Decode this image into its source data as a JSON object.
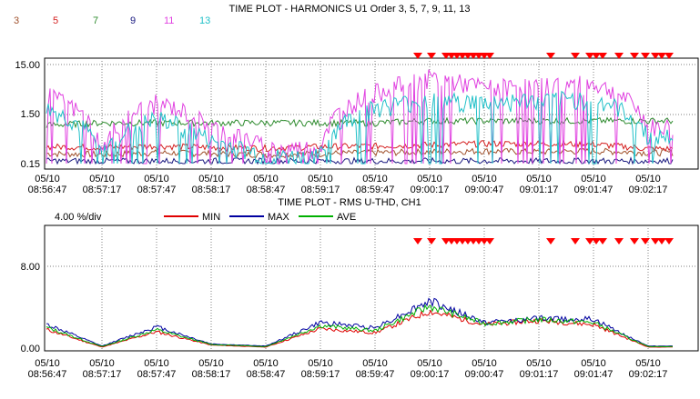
{
  "colors": {
    "h3": "#a0522d",
    "h5": "#d42020",
    "h7": "#2e8b2e",
    "h9": "#1a1a80",
    "h11": "#e040e0",
    "h13": "#20c0c8",
    "min": "#e00000",
    "max": "#0000a0",
    "ave": "#00b000",
    "marker": "#ff0000",
    "grid": "#808080",
    "axis": "#000000"
  },
  "chart_data": [
    {
      "type": "line",
      "title": "TIME PLOT - HARMONICS  U1  Order  3,  5,  7,  9, 11, 13",
      "log_scale": true,
      "ylim": [
        0.15,
        15.0
      ],
      "ytick_labels": [
        "15.00",
        "1.50",
        "0.15"
      ],
      "xtick_dates": [
        "05/10",
        "05/10",
        "05/10",
        "05/10",
        "05/10",
        "05/10",
        "05/10",
        "05/10",
        "05/10",
        "05/10",
        "05/10",
        "05/10"
      ],
      "xtick_times": [
        "08:56:47",
        "08:57:17",
        "08:57:47",
        "08:58:17",
        "08:58:47",
        "08:59:17",
        "08:59:47",
        "09:00:17",
        "09:00:47",
        "09:01:17",
        "09:01:47",
        "09:02:17"
      ],
      "legend_position": "top-left",
      "series": [
        {
          "name": "3",
          "color_key": "h3",
          "values": [
            0.24,
            0.23,
            0.25,
            0.24,
            0.23,
            0.24,
            0.25,
            0.26,
            0.27,
            0.26,
            0.27,
            0.25
          ]
        },
        {
          "name": "5",
          "color_key": "h5",
          "values": [
            0.33,
            0.32,
            0.34,
            0.32,
            0.31,
            0.33,
            0.34,
            0.36,
            0.38,
            0.38,
            0.37,
            0.3
          ]
        },
        {
          "name": "7",
          "color_key": "h7",
          "values": [
            0.9,
            1.0,
            1.0,
            1.0,
            1.0,
            1.0,
            1.0,
            1.1,
            1.1,
            1.1,
            1.1,
            1.1
          ]
        },
        {
          "name": "9",
          "color_key": "h9",
          "values": [
            0.17,
            0.17,
            0.17,
            0.17,
            0.17,
            0.17,
            0.17,
            0.17,
            0.17,
            0.17,
            0.17,
            0.17
          ]
        },
        {
          "name": "11",
          "color_key": "h11",
          "values": [
            3.5,
            0.2,
            2.5,
            0.8,
            0.3,
            0.3,
            4.0,
            8.0,
            5.0,
            5.5,
            6.0,
            0.8
          ]
        },
        {
          "name": "13",
          "color_key": "h13",
          "values": [
            1.8,
            0.2,
            1.2,
            0.4,
            0.2,
            0.2,
            2.0,
            2.8,
            2.5,
            2.8,
            3.0,
            0.5
          ]
        }
      ]
    },
    {
      "type": "line",
      "title": "TIME PLOT - RMS  U-THD, CH1",
      "scale_label": "4.00 %/div",
      "ylim": [
        0.0,
        8.0
      ],
      "ytick_labels": [
        "8.00",
        "0.00"
      ],
      "xtick_dates": [
        "05/10",
        "05/10",
        "05/10",
        "05/10",
        "05/10",
        "05/10",
        "05/10",
        "05/10",
        "05/10",
        "05/10",
        "05/10",
        "05/10"
      ],
      "xtick_times": [
        "08:56:47",
        "08:57:17",
        "08:57:47",
        "08:58:17",
        "08:58:47",
        "08:59:17",
        "08:59:47",
        "09:00:17",
        "09:00:47",
        "09:01:17",
        "09:01:47",
        "09:02:17"
      ],
      "legend_position": "top-center",
      "series": [
        {
          "name": "MIN",
          "color_key": "min",
          "values": [
            1.8,
            0.1,
            1.6,
            0.3,
            0.1,
            1.9,
            1.5,
            3.6,
            2.3,
            2.7,
            2.3,
            0.1
          ]
        },
        {
          "name": "MAX",
          "color_key": "max",
          "values": [
            2.3,
            0.2,
            2.1,
            0.4,
            0.2,
            2.5,
            2.0,
            4.6,
            2.5,
            2.9,
            2.8,
            0.2
          ]
        },
        {
          "name": "AVE",
          "color_key": "ave",
          "values": [
            2.0,
            0.15,
            1.8,
            0.35,
            0.15,
            2.2,
            1.7,
            4.1,
            2.4,
            2.8,
            2.5,
            0.15
          ]
        }
      ]
    }
  ]
}
